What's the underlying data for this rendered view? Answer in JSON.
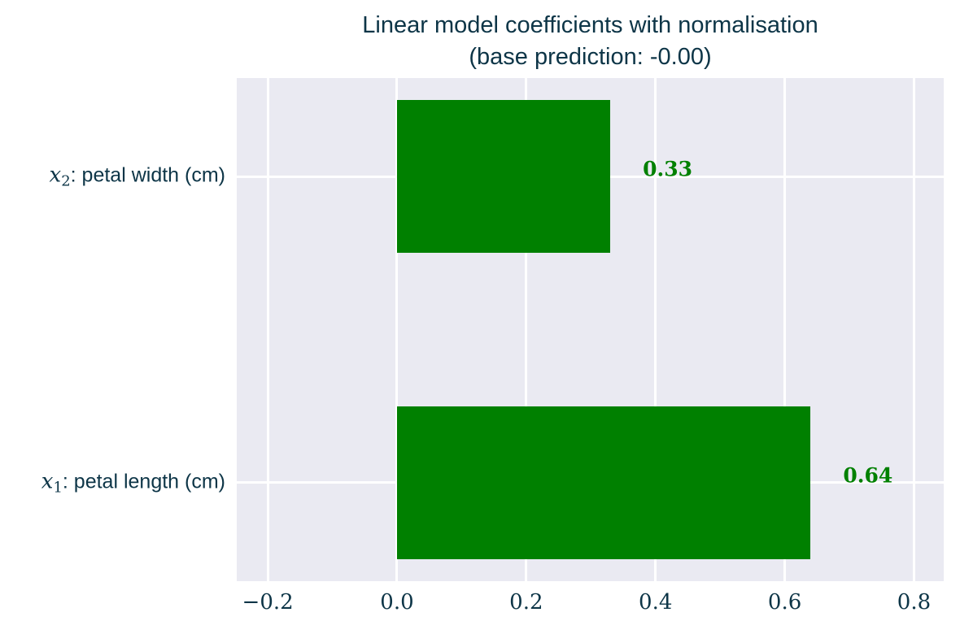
{
  "figure": {
    "title_line1": "Linear model coefficients with normalisation",
    "title_line2": "(base prediction: -0.00)"
  },
  "chart_data": {
    "type": "bar",
    "orientation": "horizontal",
    "title": "Linear model coefficients with normalisation",
    "subtitle": "(base prediction: -0.00)",
    "base_prediction": "-0.00",
    "categories": [
      "x_2: petal width (cm)",
      "x_1: petal length (cm)"
    ],
    "values": [
      0.33,
      0.64
    ],
    "bars": [
      {
        "label": {
          "var": "x",
          "sub": "2",
          "rest": ":  petal width (cm)"
        },
        "value": 0.33,
        "value_label": "0.33",
        "y_pos": 1
      },
      {
        "label": {
          "var": "x",
          "sub": "1",
          "rest": ":  petal length (cm)"
        },
        "value": 0.64,
        "value_label": "0.64",
        "y_pos": 0
      }
    ],
    "bar_start": 0.0,
    "bar_height": 0.5,
    "xlim": [
      -0.248,
      0.846
    ],
    "ylim": [
      -0.323,
      1.323
    ],
    "x_ticks": [
      {
        "value": -0.2,
        "label": "−0.2"
      },
      {
        "value": 0.0,
        "label": "0.0"
      },
      {
        "value": 0.2,
        "label": "0.2"
      },
      {
        "value": 0.4,
        "label": "0.4"
      },
      {
        "value": 0.6,
        "label": "0.6"
      },
      {
        "value": 0.8,
        "label": "0.8"
      }
    ],
    "grid": true,
    "legend": null,
    "xlabel": "",
    "ylabel": "",
    "colors": {
      "bar": "#008000",
      "value_label": "#008000",
      "plot_background": "#eaeaf2",
      "gridline": "#ffffff",
      "text": "#0d3547",
      "figure_background": "#ffffff"
    }
  }
}
